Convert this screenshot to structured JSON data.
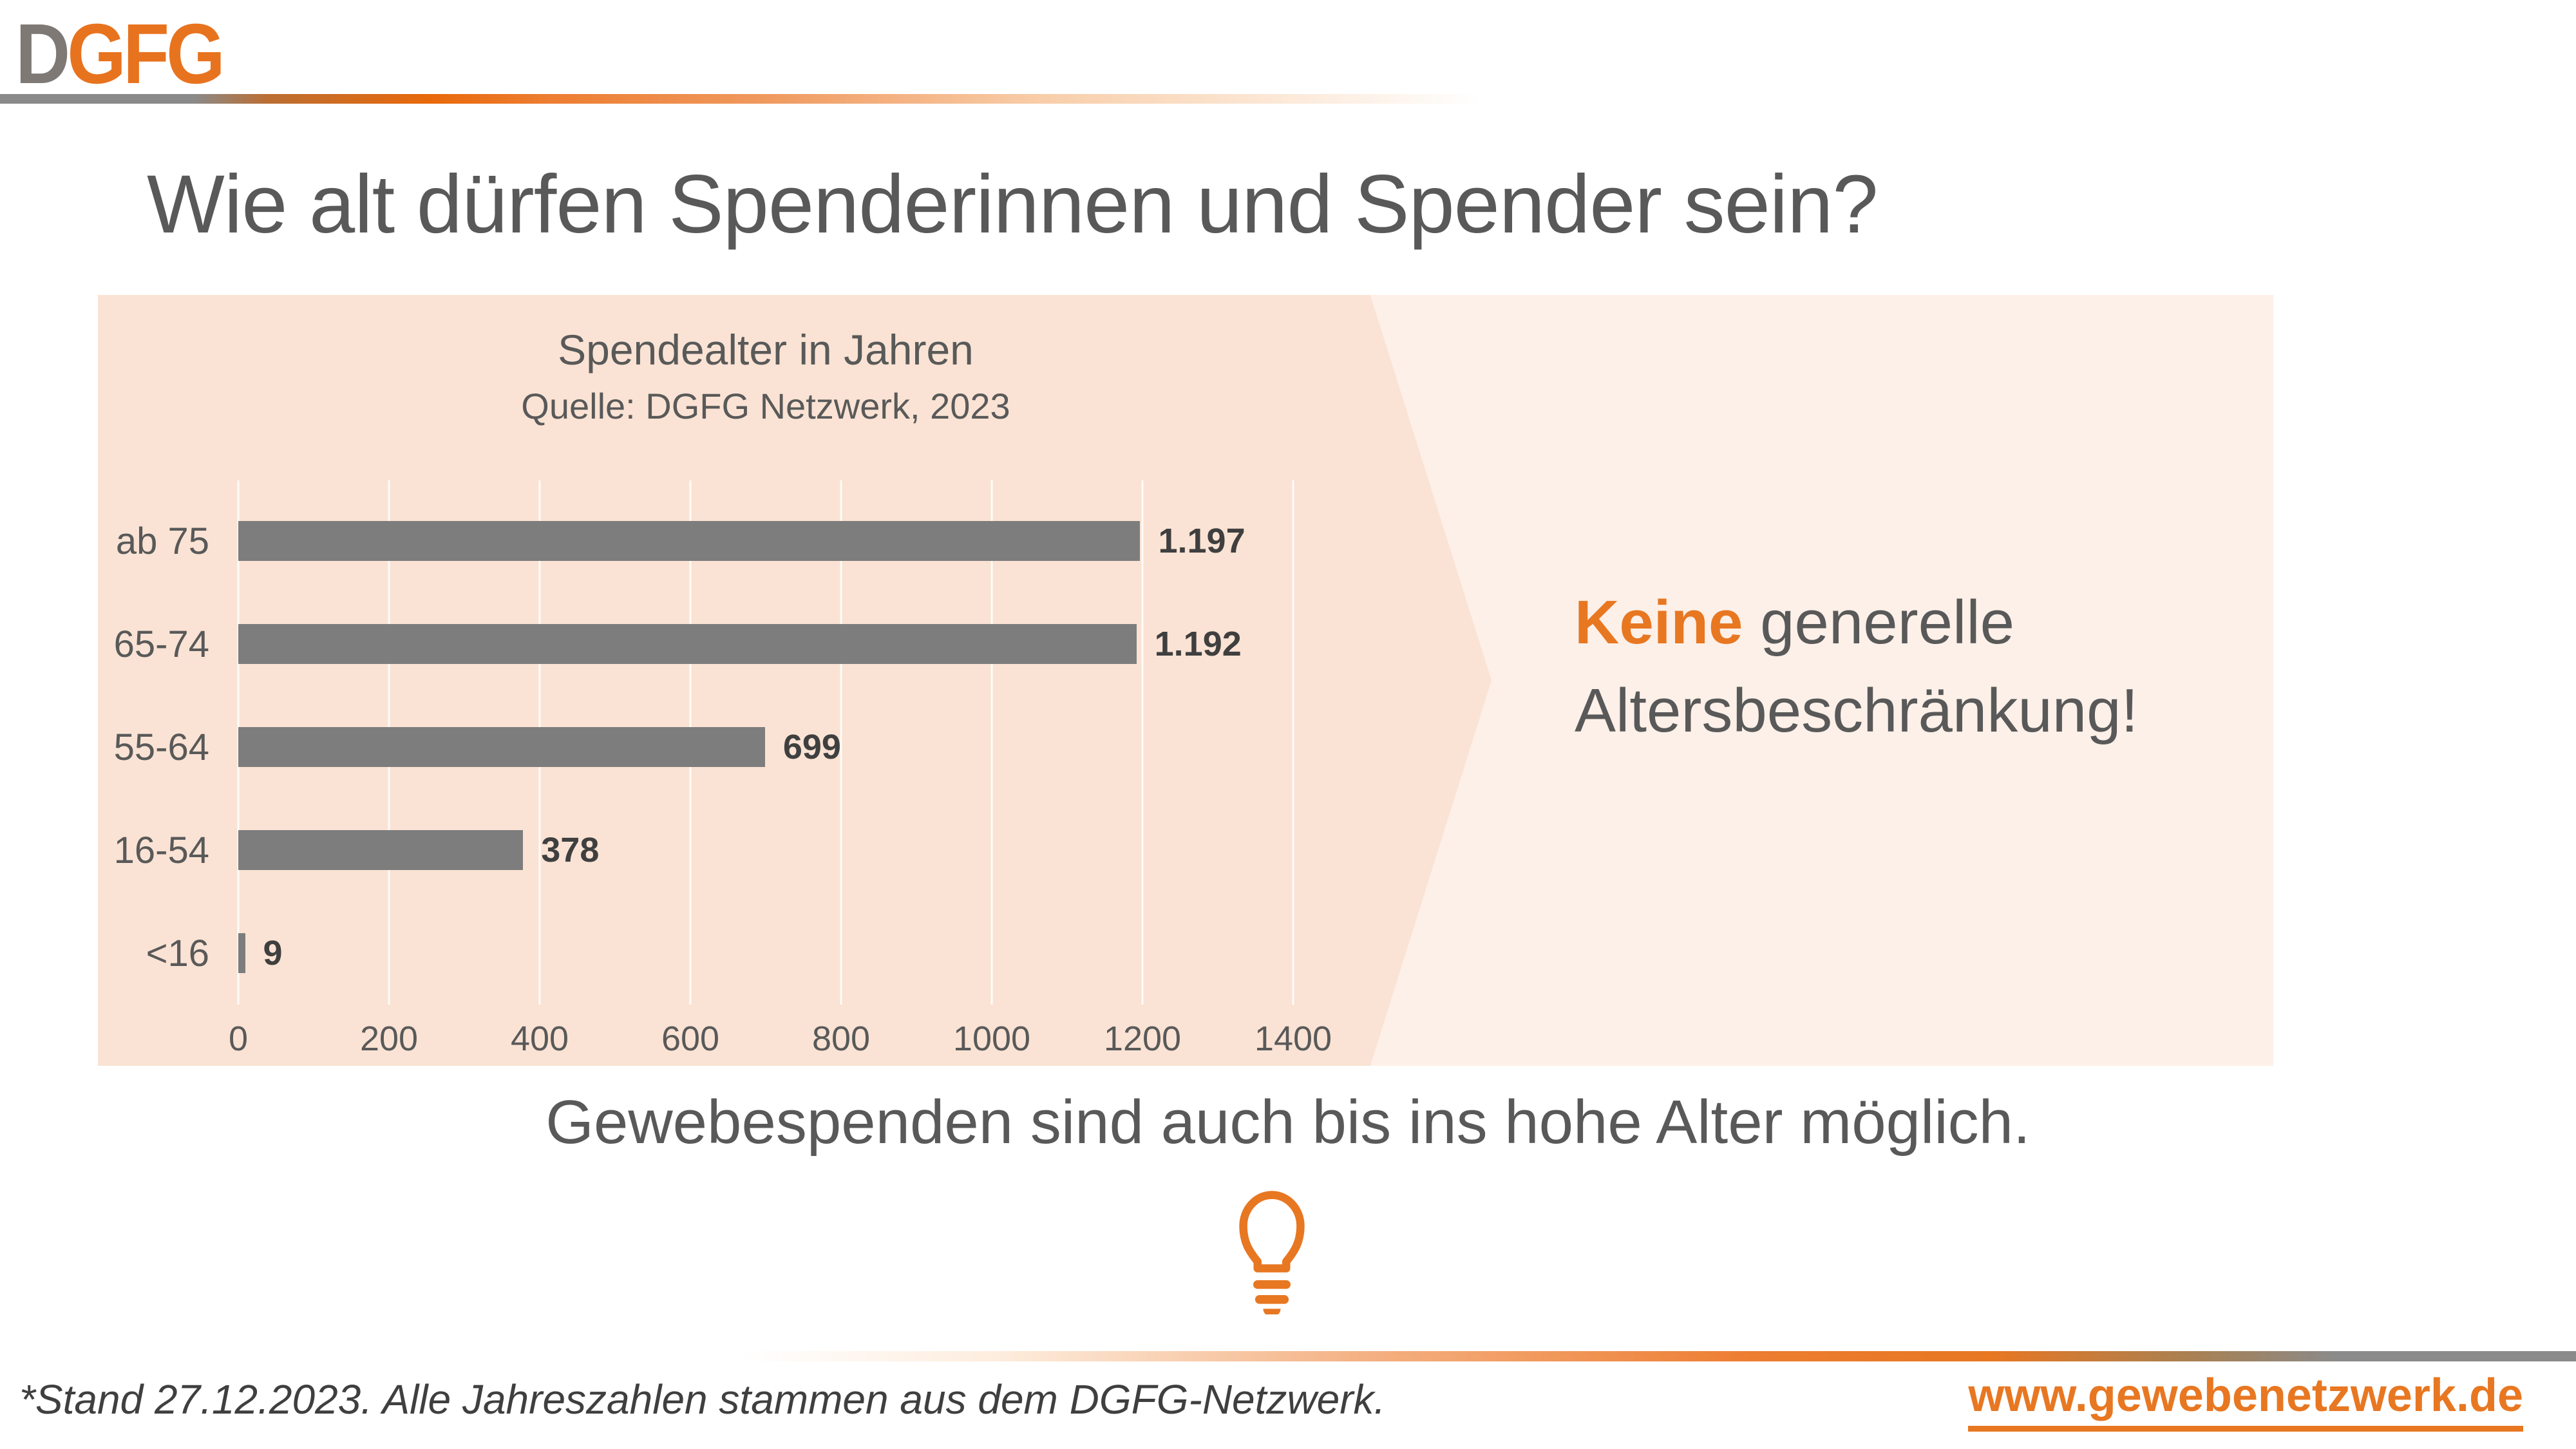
{
  "slide": {
    "logo": {
      "gray_part": "D",
      "orange_part": "GFG"
    },
    "title": "Wie alt dürfen Spenderinnen und Spender sein?",
    "callout": {
      "highlight": "Keine",
      "line1_rest": " generelle",
      "line2": "Altersbeschränkung!"
    },
    "lead_sentence": "Gewebespenden sind auch bis ins hohe Alter möglich.",
    "footnote": "*Stand 27.12.2023. Alle Jahreszahlen stammen aus dem DGFG-Netzwerk.",
    "website": "www.gewebenetzwerk.de"
  },
  "icons": {
    "lightbulb": "lightbulb-icon"
  },
  "colors": {
    "accent_orange": "#E87722",
    "logo_orange": "#E8731F",
    "logo_gray": "#7E7975",
    "text_dark_gray": "#595959",
    "value_label_gray": "#3F3F3F",
    "bar_gray": "#7D7D7D",
    "panel_peach": "#FAE3D4",
    "panel_light_peach": "#FCF0E8",
    "rule_gray": "#8A8A8A"
  },
  "chart_data": {
    "type": "bar",
    "orientation": "horizontal",
    "title": "Spendealter in Jahren",
    "subtitle": "Quelle: DGFG Netzwerk, 2023",
    "categories": [
      "ab 75",
      "65-74",
      "55-64",
      "16-54",
      "<16"
    ],
    "values": [
      1197,
      1192,
      699,
      378,
      9
    ],
    "value_labels": [
      "1.197",
      "1.192",
      "699",
      "378",
      "9"
    ],
    "xlim": [
      0,
      1400
    ],
    "x_ticks": [
      0,
      200,
      400,
      600,
      800,
      1000,
      1200,
      1400
    ],
    "grid": true,
    "legend": false
  }
}
